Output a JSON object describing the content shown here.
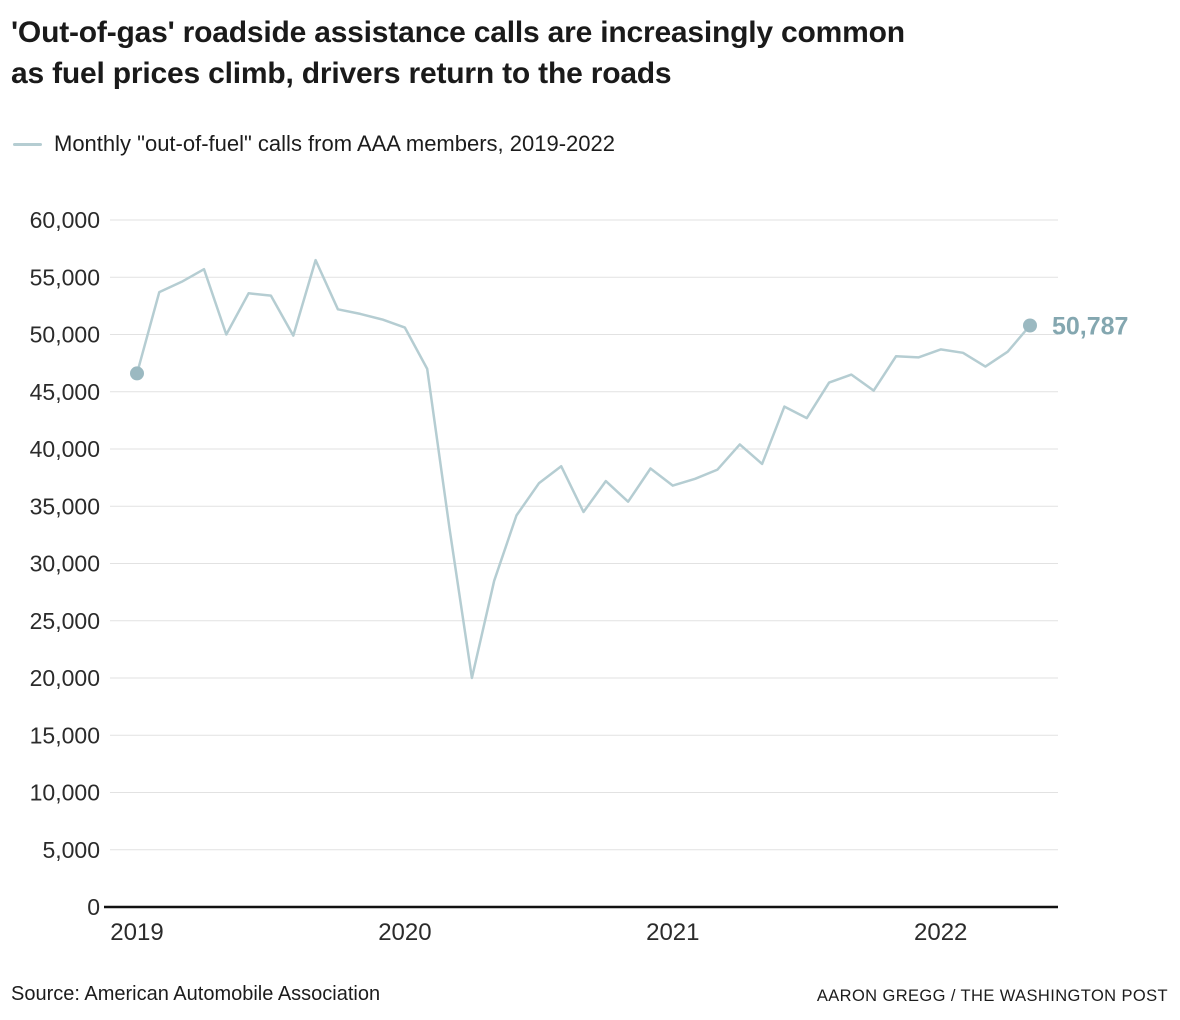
{
  "header": {
    "title_line1": "'Out-of-gas' roadside assistance calls are increasingly common",
    "title_line2": "as fuel prices climb, drivers return to the roads",
    "legend_label": "Monthly \"out-of-fuel\" calls from AAA members, 2019-2022"
  },
  "footer": {
    "source": "Source: American Automobile Association",
    "credit": "AARON GREGG / THE WASHINGTON POST"
  },
  "chart_data": {
    "type": "line",
    "title": "'Out-of-gas' roadside assistance calls are increasingly common as fuel prices climb, drivers return to the roads",
    "legend": "Monthly \"out-of-fuel\" calls from AAA members, 2019-2022",
    "xlabel": "",
    "ylabel": "",
    "grid": true,
    "ylim": [
      0,
      60000
    ],
    "ytick_step": 5000,
    "xtick_labels": [
      "2019",
      "2020",
      "2021",
      "2022"
    ],
    "x": [
      "2019-01",
      "2019-02",
      "2019-03",
      "2019-04",
      "2019-05",
      "2019-06",
      "2019-07",
      "2019-08",
      "2019-09",
      "2019-10",
      "2019-11",
      "2019-12",
      "2020-01",
      "2020-02",
      "2020-03",
      "2020-04",
      "2020-05",
      "2020-06",
      "2020-07",
      "2020-08",
      "2020-09",
      "2020-10",
      "2020-11",
      "2020-12",
      "2021-01",
      "2021-02",
      "2021-03",
      "2021-04",
      "2021-05",
      "2021-06",
      "2021-07",
      "2021-08",
      "2021-09",
      "2021-10",
      "2021-11",
      "2021-12",
      "2022-01",
      "2022-02",
      "2022-03",
      "2022-04",
      "2022-05"
    ],
    "values": [
      46600,
      53700,
      54600,
      55700,
      50000,
      53600,
      53400,
      49900,
      56500,
      52200,
      51800,
      51300,
      50600,
      47000,
      33000,
      20000,
      28500,
      34200,
      37000,
      38500,
      34500,
      37200,
      35400,
      38300,
      36800,
      37400,
      38200,
      40400,
      38700,
      43700,
      42700,
      45800,
      46500,
      45100,
      48100,
      48000,
      48700,
      48400,
      47200,
      48500,
      50787
    ],
    "end_label": "50,787",
    "colors": {
      "line": "#b5cdd2",
      "dot": "#9bb9c1",
      "end_label": "#84a7b0",
      "grid": "#e2e2e2",
      "axis": "#111111",
      "tick_text": "#2b2b2b"
    }
  }
}
